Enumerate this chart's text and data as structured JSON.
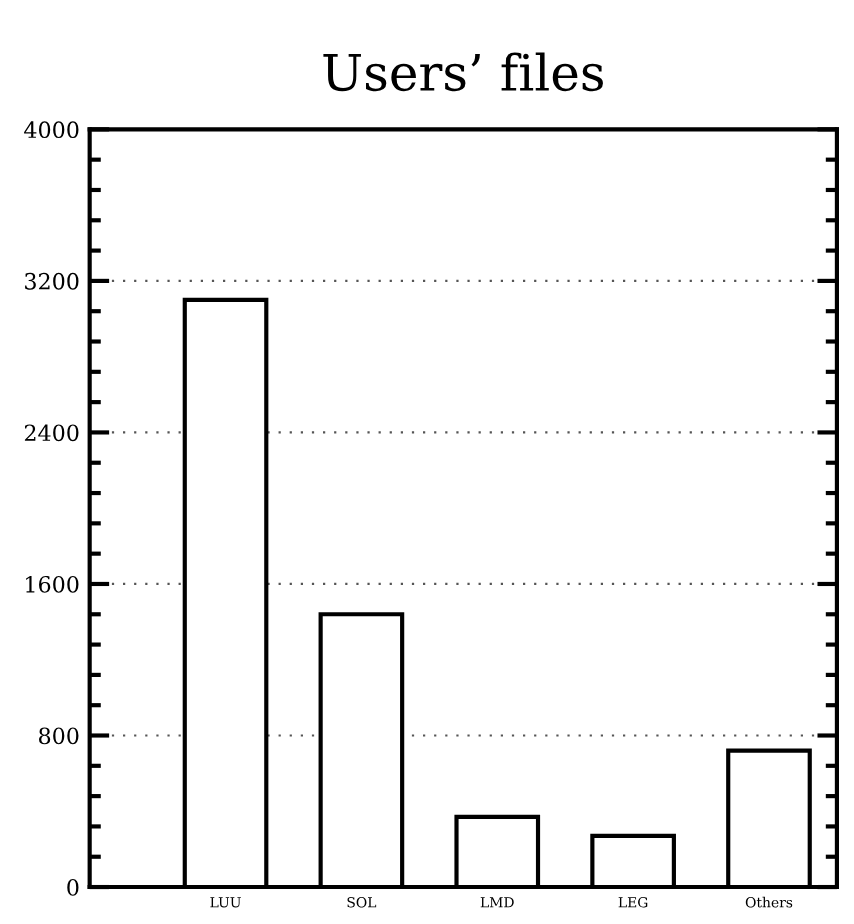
{
  "chart_data": {
    "type": "bar",
    "title": "Users’ files",
    "categories": [
      "LUU",
      "SOL",
      "LMD",
      "LEG",
      "Others"
    ],
    "values": [
      3100,
      1440,
      370,
      270,
      720
    ],
    "color": "#ffffff",
    "ylim": [
      0,
      4000
    ],
    "yticks": [
      0,
      800,
      1600,
      2400,
      3200,
      4000
    ],
    "grid": "y"
  }
}
